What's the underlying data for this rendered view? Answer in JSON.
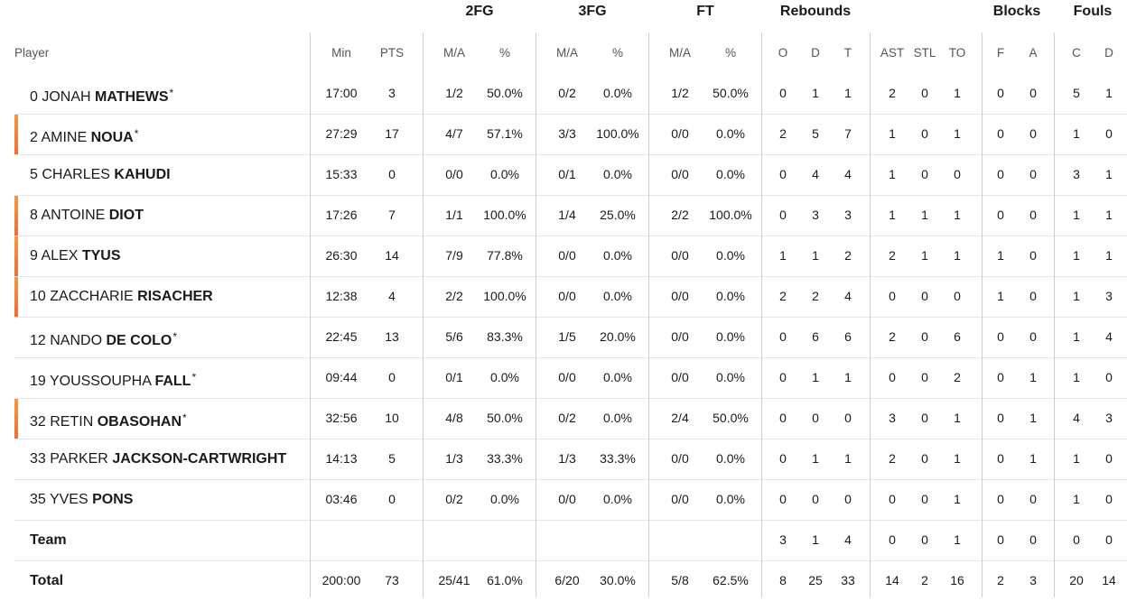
{
  "groups": [
    "2FG",
    "3FG",
    "FT",
    "Rebounds",
    "Blocks",
    "Fouls"
  ],
  "columns": [
    "Player",
    "Min",
    "PTS",
    "M/A",
    "%",
    "M/A",
    "%",
    "M/A",
    "%",
    "O",
    "D",
    "T",
    "AST",
    "STL",
    "TO",
    "F",
    "A",
    "C",
    "D"
  ],
  "players": [
    {
      "num": "0",
      "first": "JONAH",
      "last": "MATHEWS",
      "star": "*",
      "marked": false,
      "stats": [
        "17:00",
        "3",
        "1/2",
        "50.0%",
        "0/2",
        "0.0%",
        "1/2",
        "50.0%",
        "0",
        "1",
        "1",
        "2",
        "0",
        "1",
        "0",
        "0",
        "5",
        "1"
      ]
    },
    {
      "num": "2",
      "first": "AMINE",
      "last": "NOUA",
      "star": "*",
      "marked": true,
      "stats": [
        "27:29",
        "17",
        "4/7",
        "57.1%",
        "3/3",
        "100.0%",
        "0/0",
        "0.0%",
        "2",
        "5",
        "7",
        "1",
        "0",
        "1",
        "0",
        "0",
        "1",
        "0"
      ]
    },
    {
      "num": "5",
      "first": "CHARLES",
      "last": "KAHUDI",
      "star": "",
      "marked": false,
      "stats": [
        "15:33",
        "0",
        "0/0",
        "0.0%",
        "0/1",
        "0.0%",
        "0/0",
        "0.0%",
        "0",
        "4",
        "4",
        "1",
        "0",
        "0",
        "0",
        "0",
        "3",
        "1"
      ]
    },
    {
      "num": "8",
      "first": "ANTOINE",
      "last": "DIOT",
      "star": "",
      "marked": true,
      "stats": [
        "17:26",
        "7",
        "1/1",
        "100.0%",
        "1/4",
        "25.0%",
        "2/2",
        "100.0%",
        "0",
        "3",
        "3",
        "1",
        "1",
        "1",
        "0",
        "0",
        "1",
        "1"
      ]
    },
    {
      "num": "9",
      "first": "ALEX",
      "last": "TYUS",
      "star": "",
      "marked": true,
      "stats": [
        "26:30",
        "14",
        "7/9",
        "77.8%",
        "0/0",
        "0.0%",
        "0/0",
        "0.0%",
        "1",
        "1",
        "2",
        "2",
        "1",
        "1",
        "1",
        "0",
        "1",
        "1"
      ]
    },
    {
      "num": "10",
      "first": "ZACCHARIE",
      "last": "RISACHER",
      "star": "",
      "marked": true,
      "stats": [
        "12:38",
        "4",
        "2/2",
        "100.0%",
        "0/0",
        "0.0%",
        "0/0",
        "0.0%",
        "2",
        "2",
        "4",
        "0",
        "0",
        "0",
        "1",
        "0",
        "1",
        "3"
      ]
    },
    {
      "num": "12",
      "first": "NANDO",
      "last": "DE COLO",
      "star": "*",
      "marked": false,
      "stats": [
        "22:45",
        "13",
        "5/6",
        "83.3%",
        "1/5",
        "20.0%",
        "0/0",
        "0.0%",
        "0",
        "6",
        "6",
        "2",
        "0",
        "6",
        "0",
        "0",
        "1",
        "4"
      ]
    },
    {
      "num": "19",
      "first": "YOUSSOUPHA",
      "last": "FALL",
      "star": "*",
      "marked": false,
      "stats": [
        "09:44",
        "0",
        "0/1",
        "0.0%",
        "0/0",
        "0.0%",
        "0/0",
        "0.0%",
        "0",
        "1",
        "1",
        "0",
        "0",
        "2",
        "0",
        "1",
        "1",
        "0"
      ]
    },
    {
      "num": "32",
      "first": "RETIN",
      "last": "OBASOHAN",
      "star": "*",
      "marked": true,
      "stats": [
        "32:56",
        "10",
        "4/8",
        "50.0%",
        "0/2",
        "0.0%",
        "2/4",
        "50.0%",
        "0",
        "0",
        "0",
        "3",
        "0",
        "1",
        "0",
        "1",
        "4",
        "3"
      ]
    },
    {
      "num": "33",
      "first": "PARKER",
      "last": "JACKSON-CARTWRIGHT",
      "star": "",
      "marked": false,
      "stats": [
        "14:13",
        "5",
        "1/3",
        "33.3%",
        "1/3",
        "33.3%",
        "0/0",
        "0.0%",
        "0",
        "1",
        "1",
        "2",
        "0",
        "1",
        "0",
        "1",
        "1",
        "0"
      ]
    },
    {
      "num": "35",
      "first": "YVES",
      "last": "PONS",
      "star": "",
      "marked": false,
      "stats": [
        "03:46",
        "0",
        "0/2",
        "0.0%",
        "0/0",
        "0.0%",
        "0/0",
        "0.0%",
        "0",
        "0",
        "0",
        "0",
        "0",
        "1",
        "0",
        "0",
        "1",
        "0"
      ]
    }
  ],
  "team": {
    "label": "Team",
    "stats": [
      "",
      "",
      "",
      "",
      "",
      "",
      "",
      "",
      "3",
      "1",
      "4",
      "0",
      "0",
      "1",
      "0",
      "0",
      "0",
      "0"
    ]
  },
  "total": {
    "label": "Total",
    "stats": [
      "200:00",
      "73",
      "25/41",
      "61.0%",
      "6/20",
      "30.0%",
      "5/8",
      "62.5%",
      "8",
      "25",
      "33",
      "14",
      "2",
      "16",
      "2",
      "3",
      "20",
      "14"
    ]
  }
}
